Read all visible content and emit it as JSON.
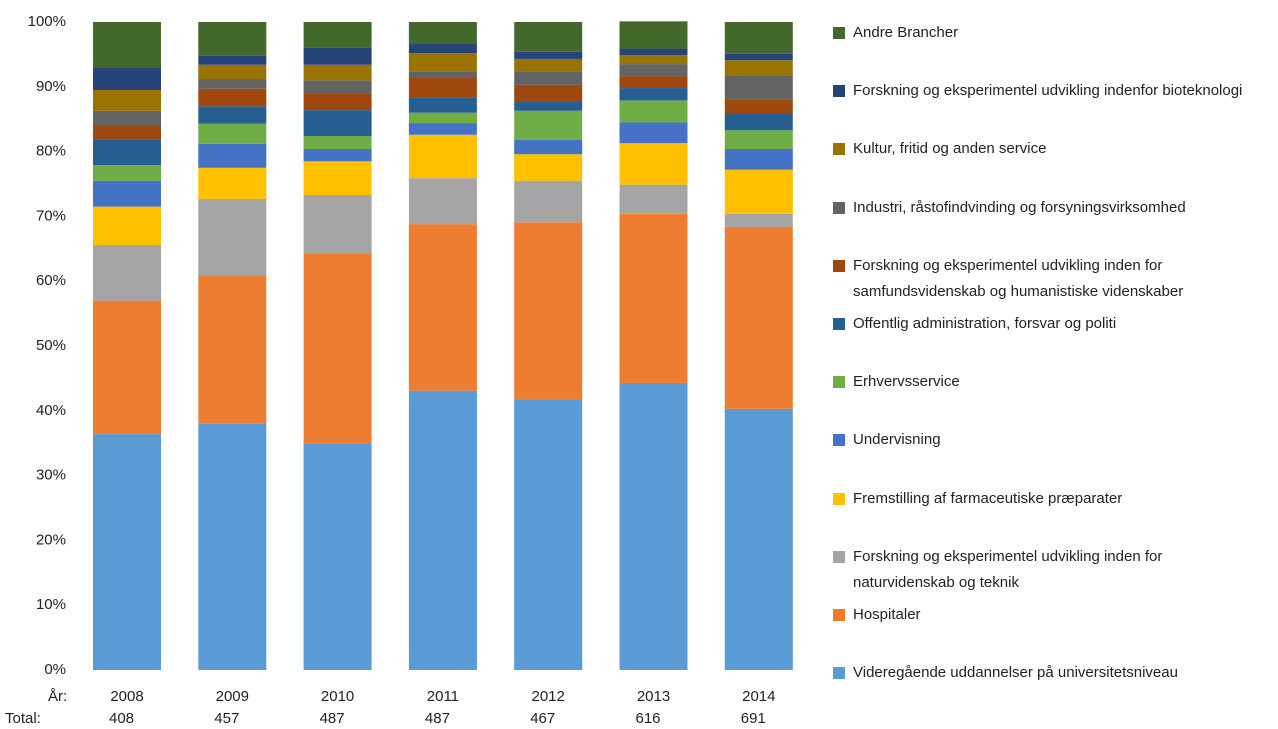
{
  "chart_data": {
    "type": "stacked_bar_100",
    "category_label": "År:",
    "total_label": "Total:",
    "categories": [
      "2008",
      "2009",
      "2010",
      "2011",
      "2012",
      "2013",
      "2014"
    ],
    "totals": [
      "408",
      "457",
      "487",
      "487",
      "467",
      "616",
      "691"
    ],
    "ylim": [
      0,
      100
    ],
    "yticks": [
      {
        "value": 0,
        "label": "0%"
      },
      {
        "value": 10,
        "label": "10%"
      },
      {
        "value": 20,
        "label": "20%"
      },
      {
        "value": 30,
        "label": "30%"
      },
      {
        "value": 40,
        "label": "40%"
      },
      {
        "value": 50,
        "label": "50%"
      },
      {
        "value": 60,
        "label": "60%"
      },
      {
        "value": 70,
        "label": "70%"
      },
      {
        "value": 80,
        "label": "80%"
      },
      {
        "value": 90,
        "label": "90%"
      },
      {
        "value": 100,
        "label": "100%"
      }
    ],
    "grid": false,
    "legend": "right",
    "series": [
      {
        "name": "Videregående uddannelser på universitetsniveau",
        "color": "#5b9bd5",
        "values": [
          36.4,
          38.0,
          35.0,
          43.1,
          41.8,
          44.3,
          40.3
        ]
      },
      {
        "name": "Hospitaler",
        "color": "#ed7d31",
        "values": [
          20.6,
          22.8,
          29.2,
          25.7,
          27.3,
          26.1,
          28.1
        ]
      },
      {
        "name": "Forskning og eksperimentel udvikling inden for naturvidenskab og teknik",
        "color": "#a5a5a5",
        "values": [
          8.6,
          11.9,
          9.1,
          7.1,
          6.4,
          4.5,
          2.0
        ]
      },
      {
        "name": "Fremstilling af farmaceutiske præparater",
        "color": "#ffc000",
        "values": [
          5.9,
          4.8,
          5.2,
          6.7,
          4.1,
          6.4,
          6.8
        ]
      },
      {
        "name": "Undervisning",
        "color": "#4472c4",
        "values": [
          4.0,
          3.7,
          1.9,
          1.8,
          2.2,
          3.2,
          3.2
        ]
      },
      {
        "name": "Erhvervsservice",
        "color": "#70ad47",
        "values": [
          2.4,
          3.1,
          2.0,
          1.6,
          4.5,
          3.4,
          2.9
        ]
      },
      {
        "name": "Offentlig administration, forsvar og politi",
        "color": "#255e91",
        "values": [
          3.9,
          2.7,
          4.0,
          2.4,
          1.5,
          1.9,
          2.5
        ]
      },
      {
        "name": "Forskning og eksperimentel udvikling inden for samfundsvidenskab og humanistiske videnskaber",
        "color": "#9e480e",
        "values": [
          2.3,
          2.7,
          2.5,
          3.1,
          2.5,
          1.8,
          2.3
        ]
      },
      {
        "name": "Industri, råstofindvinding og forsyningsvirksomhed",
        "color": "#636363",
        "values": [
          2.2,
          1.5,
          2.1,
          0.9,
          2.1,
          1.9,
          3.7
        ]
      },
      {
        "name": "Kultur, fritid og anden service",
        "color": "#997300",
        "values": [
          3.2,
          2.2,
          2.4,
          2.8,
          1.9,
          1.4,
          2.3
        ]
      },
      {
        "name": "Forskning og eksperimentel udvikling indenfor bioteknologi",
        "color": "#264478",
        "values": [
          3.4,
          1.4,
          2.6,
          1.4,
          1.1,
          1.0,
          1.0
        ]
      },
      {
        "name": "Andre Brancher",
        "color": "#43682b",
        "values": [
          7.1,
          5.2,
          4.0,
          3.4,
          4.6,
          4.2,
          4.9
        ]
      }
    ]
  }
}
